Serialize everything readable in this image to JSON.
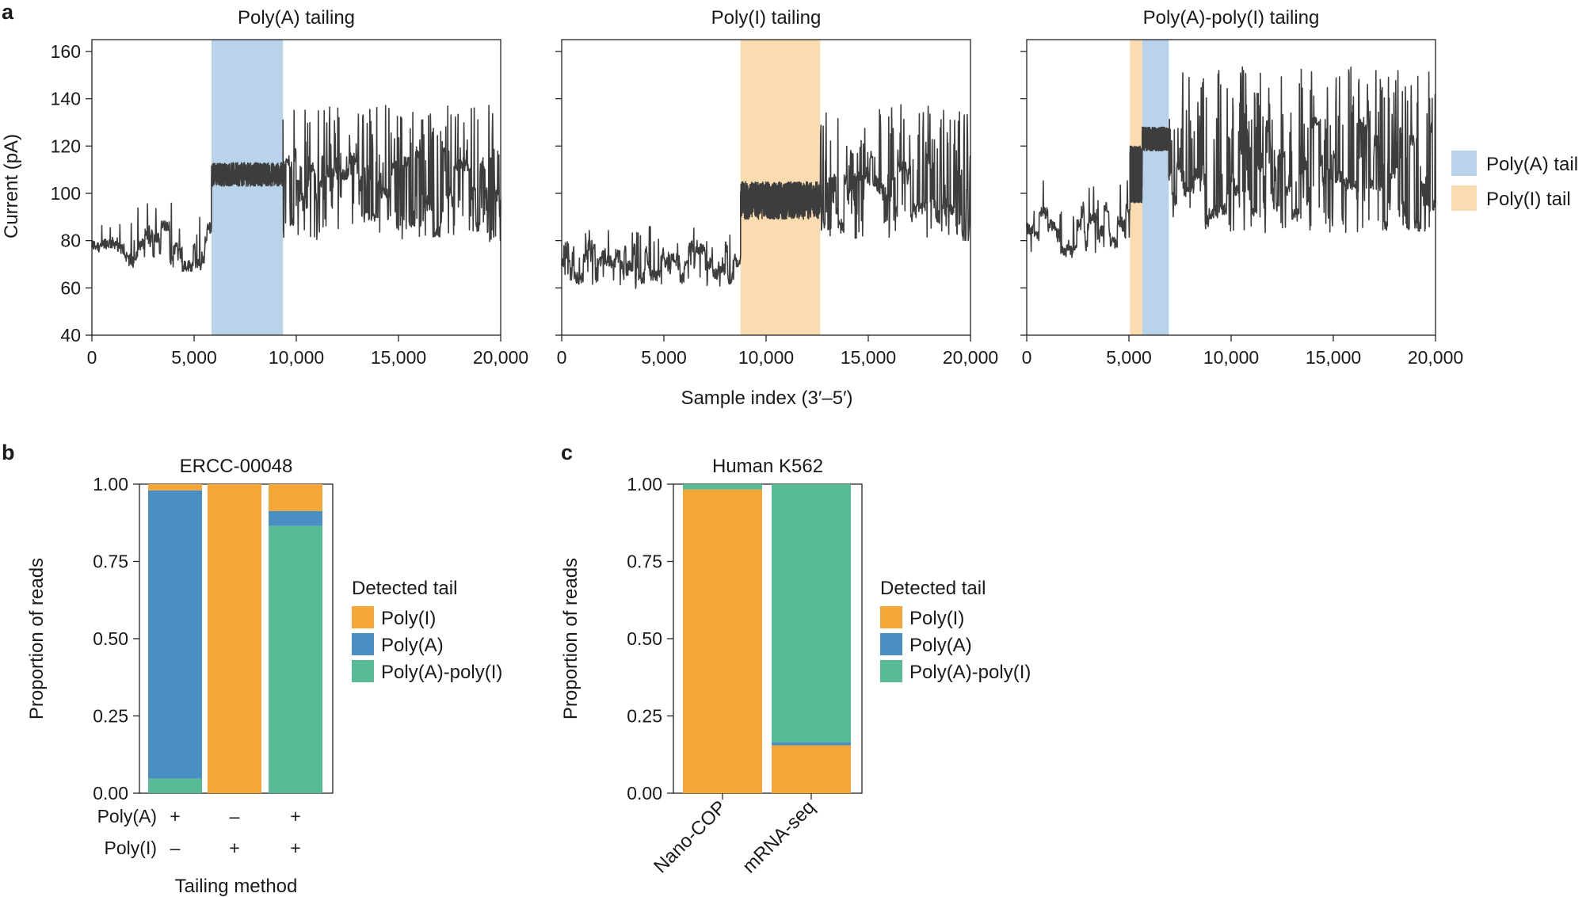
{
  "figure": {
    "panel_labels": [
      "a",
      "b",
      "c"
    ]
  },
  "chart_data": [
    {
      "panel": "a",
      "type": "line",
      "description_kind": "nanopore current traces",
      "shared_xlabel": "Sample index (3′–5′)",
      "ylabel": "Current (pA)",
      "xlim": [
        0,
        20000
      ],
      "ylim": [
        40,
        165
      ],
      "xticks": [
        0,
        5000,
        10000,
        15000,
        20000
      ],
      "xtick_labels": [
        "0",
        "5,000",
        "10,000",
        "15,000",
        "20,000"
      ],
      "yticks": [
        40,
        60,
        80,
        100,
        120,
        140,
        160
      ],
      "ytick_labels": [
        "40",
        "60",
        "80",
        "100",
        "120",
        "140",
        "160"
      ],
      "colors": {
        "trace": "#3d3d3d",
        "polyA_band": "#b9d3ea",
        "polyI_band": "#fbdcb0"
      },
      "legend": [
        {
          "label": "Poly(A) tail",
          "color": "#b9d3ea"
        },
        {
          "label": "Poly(I) tail",
          "color": "#fbdcb0"
        }
      ],
      "subplots": [
        {
          "title": "Poly(A) tailing",
          "bands": [
            {
              "type": "Poly(A)",
              "x0": 5850,
              "x1": 9350
            }
          ],
          "segments": [
            {
              "x0": 0,
              "x1": 5850,
              "mean": 78,
              "spread": 9,
              "spike": 0.06
            },
            {
              "x0": 5850,
              "x1": 9350,
              "mean": 108,
              "spread": 2.5,
              "spike": 0,
              "dense": true
            },
            {
              "x0": 9350,
              "x1": 20000,
              "mean": 100,
              "spread": 18,
              "spike": 0.35
            }
          ]
        },
        {
          "title": "Poly(I) tailing",
          "bands": [
            {
              "type": "Poly(I)",
              "x0": 8750,
              "x1": 12650
            }
          ],
          "segments": [
            {
              "x0": 0,
              "x1": 8750,
              "mean": 70,
              "spread": 8,
              "spike": 0.08
            },
            {
              "x0": 8750,
              "x1": 12650,
              "mean": 97,
              "spread": 4,
              "spike": 0,
              "dense": true
            },
            {
              "x0": 12650,
              "x1": 20000,
              "mean": 100,
              "spread": 18,
              "spike": 0.35
            }
          ]
        },
        {
          "title": "Poly(A)-poly(I) tailing",
          "bands": [
            {
              "type": "Poly(I)",
              "x0": 5050,
              "x1": 5650
            },
            {
              "type": "Poly(A)",
              "x0": 5650,
              "x1": 6950
            }
          ],
          "segments": [
            {
              "x0": 0,
              "x1": 5050,
              "mean": 85,
              "spread": 10,
              "spike": 0.06
            },
            {
              "x0": 5050,
              "x1": 5650,
              "mean": 108,
              "spread": 6,
              "spike": 0,
              "dense": true
            },
            {
              "x0": 5650,
              "x1": 6950,
              "mean": 123,
              "spread": 2.5,
              "spike": 0,
              "dense": true
            },
            {
              "x0": 6950,
              "x1": 20000,
              "mean": 108,
              "spread": 22,
              "spike": 0.35
            }
          ]
        }
      ]
    },
    {
      "panel": "b",
      "type": "bar",
      "stacked": true,
      "title": "ERCC-00048",
      "ylabel": "Proportion of reads",
      "xlabel": "Tailing method",
      "ylim": [
        0,
        1
      ],
      "yticks": [
        0,
        0.25,
        0.5,
        0.75,
        1
      ],
      "ytick_labels": [
        "0.00",
        "0.25",
        "0.50",
        "0.75",
        "1.00"
      ],
      "legend_title": "Detected tail",
      "series": [
        {
          "name": "Poly(A)-poly(I)",
          "color": "#57bc96",
          "values": [
            0.047,
            0.0,
            0.865
          ]
        },
        {
          "name": "Poly(A)",
          "color": "#4a8fc4",
          "values": [
            0.933,
            0.0,
            0.048
          ]
        },
        {
          "name": "Poly(I)",
          "color": "#f4a737",
          "values": [
            0.02,
            1.0,
            0.087
          ]
        }
      ],
      "legend_order": [
        "Poly(I)",
        "Poly(A)",
        "Poly(A)-poly(I)"
      ],
      "method_rows": [
        {
          "label": "Poly(A)",
          "values": [
            "+",
            "–",
            "+"
          ]
        },
        {
          "label": "Poly(I)",
          "values": [
            "–",
            "+",
            "+"
          ]
        }
      ]
    },
    {
      "panel": "c",
      "type": "bar",
      "stacked": true,
      "title": "Human K562",
      "ylabel": "Proportion of reads",
      "ylim": [
        0,
        1
      ],
      "yticks": [
        0,
        0.25,
        0.5,
        0.75,
        1
      ],
      "ytick_labels": [
        "0.00",
        "0.25",
        "0.50",
        "0.75",
        "1.00"
      ],
      "categories": [
        "Nano-COP",
        "mRNA-seq"
      ],
      "legend_title": "Detected tail",
      "series": [
        {
          "name": "Poly(I)",
          "color": "#f4a737",
          "values": [
            0.983,
            0.155
          ]
        },
        {
          "name": "Poly(A)",
          "color": "#4a8fc4",
          "values": [
            0.0,
            0.01
          ]
        },
        {
          "name": "Poly(A)-poly(I)",
          "color": "#57bc96",
          "values": [
            0.017,
            0.835
          ]
        }
      ],
      "legend_order": [
        "Poly(I)",
        "Poly(A)",
        "Poly(A)-poly(I)"
      ]
    }
  ]
}
